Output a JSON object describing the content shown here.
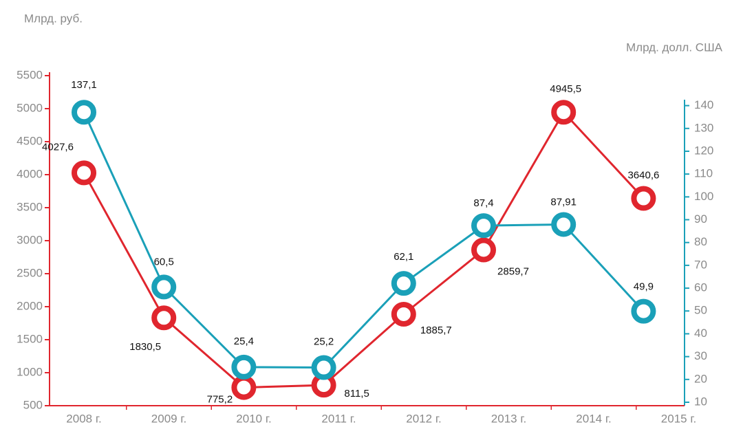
{
  "chart_data": {
    "type": "line",
    "y_label": "Млрд. руб.",
    "y2_label": "Млрд. долл. США",
    "categories": [
      "2008 г.",
      "2009 г.",
      "2010 г.",
      "2011 г.",
      "2012 г.",
      "2013 г.",
      "2014 г.",
      "2015 г."
    ],
    "series": [
      {
        "color": "#e0262e",
        "values": [
          4027.6,
          1830.5,
          775.2,
          811.5,
          1885.7,
          2859.7,
          4945.5,
          3640.6
        ],
        "value_labels": [
          "4027,6",
          "1830,5",
          "775,2",
          "811,5",
          "1885,7",
          "2859,7",
          "4945,5",
          "3640,6"
        ]
      },
      {
        "color": "#1aa0b8",
        "axis": "y2",
        "values": [
          137.1,
          60.5,
          25.4,
          25.2,
          62.1,
          87.4,
          87.91,
          49.9
        ],
        "value_labels": [
          "137,1",
          "60,5",
          "25,4",
          "25,2",
          "62,1",
          "87,4",
          "87,91",
          "49,9"
        ]
      }
    ],
    "ylim": [
      500,
      5500
    ],
    "yticks": [
      500,
      1000,
      1500,
      2000,
      2500,
      3000,
      3500,
      4000,
      4500,
      5000,
      5500
    ],
    "y2lim": [
      10,
      145
    ],
    "y2ticks": [
      10,
      20,
      30,
      40,
      50,
      60,
      70,
      80,
      90,
      100,
      110,
      120,
      130,
      140
    ]
  }
}
